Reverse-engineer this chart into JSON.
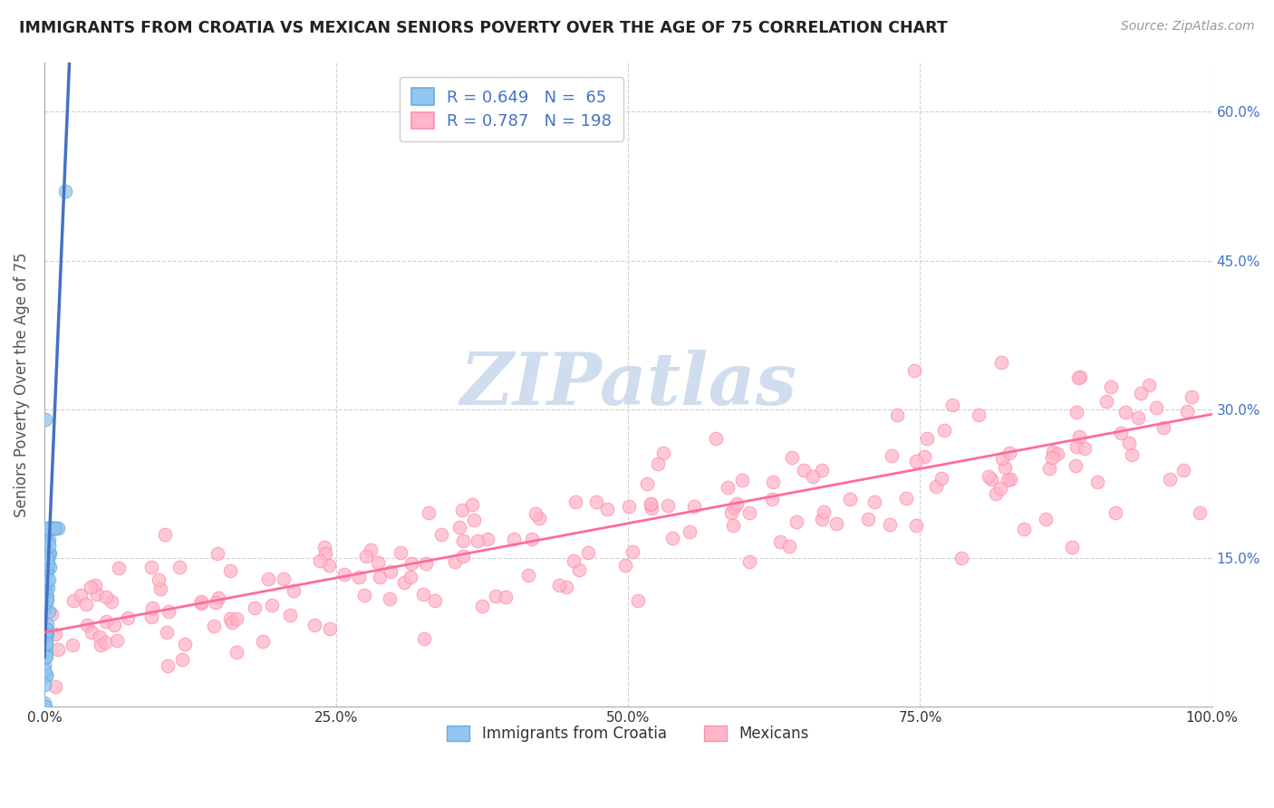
{
  "title": "IMMIGRANTS FROM CROATIA VS MEXICAN SENIORS POVERTY OVER THE AGE OF 75 CORRELATION CHART",
  "source": "Source: ZipAtlas.com",
  "ylabel": "Seniors Poverty Over the Age of 75",
  "croatia_R": 0.649,
  "croatia_N": 65,
  "mexican_R": 0.787,
  "mexican_N": 198,
  "xlim": [
    0,
    1.0
  ],
  "ylim": [
    0,
    0.65
  ],
  "xticks": [
    0.0,
    0.25,
    0.5,
    0.75,
    1.0
  ],
  "xticklabels": [
    "0.0%",
    "25.0%",
    "50.0%",
    "75.0%",
    "100.0%"
  ],
  "yticks_right": [
    0.15,
    0.3,
    0.45,
    0.6
  ],
  "yticklabels_right": [
    "15.0%",
    "30.0%",
    "45.0%",
    "60.0%"
  ],
  "blue_color": "#92C5F0",
  "blue_edge_color": "#6AAEDE",
  "pink_color": "#FFB6C8",
  "pink_edge_color": "#FF8FAB",
  "blue_line_color": "#4472C4",
  "pink_line_color": "#FF6B9D",
  "watermark_color": "#C8D8EC",
  "legend_label_croatia": "Immigrants from Croatia",
  "legend_label_mexican": "Mexicans",
  "background_color": "#ffffff",
  "grid_color": "#cccccc",
  "mexican_slope": 0.22,
  "mexican_intercept": 0.075,
  "croatia_slope": 28.0,
  "croatia_intercept": 0.05
}
